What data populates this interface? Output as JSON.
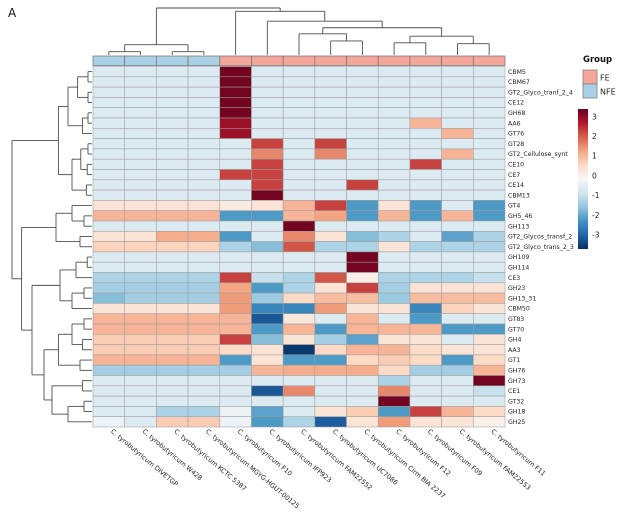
{
  "panel_label": "A",
  "legend": {
    "title": "Group",
    "items": [
      {
        "label": "FE",
        "color": "#F4A69A"
      },
      {
        "label": "NFE",
        "color": "#A9D0E4"
      }
    ]
  },
  "colorbar": {
    "ticks": [
      "3",
      "2",
      "1",
      "0",
      "-1",
      "-2",
      "-3"
    ],
    "tick_values": [
      3,
      2,
      1,
      0,
      -1,
      -2,
      -3
    ]
  },
  "chart_data": {
    "type": "heatmap",
    "title": "",
    "rows": [
      "CBM5",
      "CBM67",
      "GT2_Glyco_tranf_2_4",
      "CE12",
      "GH68",
      "AA6",
      "GT76",
      "GT28",
      "GT2_Cellulose_synt",
      "CE10",
      "CE7",
      "CE14",
      "CBM13",
      "GT4",
      "GH5_46",
      "GH113",
      "GT2_Glycos_transf_2",
      "GT2_Glyco_trans_2_3",
      "GH109",
      "GH114",
      "CE3",
      "GH23",
      "GH13_31",
      "CBM50",
      "GT83",
      "GT70",
      "GH4",
      "AA3",
      "GT1",
      "GH76",
      "GH73",
      "CE1",
      "GT32",
      "GH18",
      "GH25"
    ],
    "columns": [
      "C. tyrobutyricum DIVETGP",
      "C. tyrobutyricum W428",
      "C. tyrobutyricum KCTC 5387",
      "C. tyrobutyricum MGYG-HGUT-00125",
      "C. tyrobutyricum F10",
      "C. tyrobutyricum IFP923",
      "C. tyrobutyricum FAM22552",
      "C. tyrobutyricum UC7086",
      "C. tyrobutyricum Cirm BIA 2237",
      "C. tyrobutyricum F12",
      "C. tyrobutyricum F09",
      "C. tyrobutyricum FAM22553",
      "C. tyrobutyricum F11"
    ],
    "column_groups": [
      "NFE",
      "NFE",
      "NFE",
      "NFE",
      "FE",
      "FE",
      "FE",
      "FE",
      "FE",
      "FE",
      "FE",
      "FE",
      "FE"
    ],
    "group_colors": {
      "FE": "#F4A69A",
      "NFE": "#A9D0E4"
    },
    "grid_color": "#9E9E9E",
    "scale": {
      "min": -3.5,
      "max": 3.5,
      "colormap_anchors": [
        {
          "v": -3.5,
          "c": "#053061"
        },
        {
          "v": -2.8,
          "c": "#2166AC"
        },
        {
          "v": -2.1,
          "c": "#4393C3"
        },
        {
          "v": -1.4,
          "c": "#92C5DE"
        },
        {
          "v": -0.7,
          "c": "#D1E5F0"
        },
        {
          "v": 0.0,
          "c": "#F7F7F7"
        },
        {
          "v": 0.7,
          "c": "#FDDBC7"
        },
        {
          "v": 1.4,
          "c": "#F4A582"
        },
        {
          "v": 2.1,
          "c": "#D6604D"
        },
        {
          "v": 2.8,
          "c": "#B2182B"
        },
        {
          "v": 3.5,
          "c": "#67001F"
        }
      ]
    },
    "values": [
      [
        -0.5,
        -0.5,
        -0.5,
        -0.5,
        3.4,
        -0.5,
        -0.5,
        -0.5,
        -0.5,
        -0.5,
        -0.5,
        -0.5,
        -0.5
      ],
      [
        -0.5,
        -0.5,
        -0.5,
        -0.5,
        3.4,
        -0.5,
        -0.5,
        -0.5,
        -0.5,
        -0.5,
        -0.5,
        -0.5,
        -0.5
      ],
      [
        -0.5,
        -0.5,
        -0.5,
        -0.5,
        3.4,
        -0.5,
        -0.5,
        -0.5,
        -0.5,
        -0.5,
        -0.5,
        -0.5,
        -0.5
      ],
      [
        -0.5,
        -0.5,
        -0.5,
        -0.5,
        3.4,
        -0.5,
        -0.5,
        -0.5,
        -0.5,
        -0.5,
        -0.5,
        -0.5,
        -0.5
      ],
      [
        -0.5,
        -0.5,
        -0.5,
        -0.5,
        3.4,
        -0.5,
        -0.5,
        -0.5,
        -0.5,
        -0.5,
        -0.5,
        -0.5,
        -0.5
      ],
      [
        -0.5,
        -0.5,
        -0.5,
        -0.5,
        3.0,
        -0.5,
        -0.5,
        -0.5,
        -0.5,
        -0.5,
        1.2,
        -0.5,
        -0.5
      ],
      [
        -0.5,
        -0.5,
        -0.5,
        -0.5,
        3.0,
        -0.5,
        -0.5,
        -0.5,
        -0.5,
        -0.5,
        -0.5,
        1.2,
        -0.5
      ],
      [
        -0.5,
        -0.5,
        -0.5,
        -0.5,
        -0.5,
        2.4,
        -0.5,
        2.4,
        -0.5,
        -0.5,
        -0.5,
        -0.5,
        -0.5
      ],
      [
        -0.5,
        -0.5,
        -0.5,
        -0.5,
        -0.5,
        1.7,
        -0.5,
        1.7,
        -0.5,
        -0.5,
        -0.5,
        1.2,
        -0.5
      ],
      [
        -0.5,
        -0.5,
        -0.5,
        -0.5,
        -0.5,
        2.4,
        -0.5,
        -0.5,
        -0.5,
        -0.5,
        2.4,
        -0.5,
        -0.5
      ],
      [
        -0.5,
        -0.5,
        -0.5,
        -0.5,
        2.4,
        2.4,
        -0.5,
        -0.5,
        -0.5,
        -0.5,
        -0.5,
        -0.5,
        -0.5
      ],
      [
        -0.5,
        -0.5,
        -0.5,
        -0.5,
        -0.5,
        2.4,
        -0.5,
        -0.5,
        2.4,
        -0.5,
        -0.5,
        -0.5,
        -0.5
      ],
      [
        -0.5,
        -0.5,
        -0.5,
        -0.5,
        -0.5,
        3.4,
        -0.5,
        -0.5,
        -0.5,
        -0.5,
        -0.5,
        -0.5,
        -0.5
      ],
      [
        0.5,
        0.5,
        0.5,
        0.5,
        0.3,
        0.5,
        1.2,
        2.4,
        -2.0,
        0.5,
        -2.0,
        -0.5,
        -2.0
      ],
      [
        1.2,
        1.2,
        1.2,
        1.2,
        -2.0,
        -2.0,
        1.2,
        1.4,
        -2.0,
        1.2,
        -2.0,
        1.2,
        -2.0
      ],
      [
        -0.5,
        -0.5,
        -0.5,
        -0.5,
        -0.5,
        -0.5,
        3.4,
        -0.5,
        -0.5,
        -0.5,
        -0.5,
        -0.5,
        -0.5
      ],
      [
        0.5,
        0.5,
        1.3,
        1.3,
        -2.0,
        -0.5,
        1.7,
        0.5,
        -1.5,
        -1.1,
        -0.5,
        -1.9,
        -1.1
      ],
      [
        0.8,
        0.8,
        0.8,
        0.8,
        -1.1,
        -1.5,
        2.2,
        -1.1,
        -1.1,
        0.5,
        -1.1,
        -1.1,
        -1.1
      ],
      [
        -0.5,
        -0.5,
        -0.5,
        -0.5,
        -0.5,
        -0.5,
        -0.5,
        -0.5,
        3.4,
        -0.5,
        -0.5,
        -0.5,
        -0.5
      ],
      [
        -0.5,
        -0.5,
        -0.5,
        -0.5,
        -0.5,
        -0.5,
        -0.5,
        -0.5,
        3.4,
        -0.5,
        -0.5,
        -0.5,
        -0.5
      ],
      [
        -1.1,
        -1.1,
        -1.1,
        -1.1,
        2.4,
        -0.8,
        -1.1,
        2.2,
        0.2,
        -1.1,
        -1.1,
        -1.1,
        -0.8
      ],
      [
        -1.2,
        -1.2,
        -1.2,
        -1.2,
        1.4,
        -2.0,
        -1.1,
        0.5,
        2.4,
        -1.2,
        0.5,
        0.5,
        0.5
      ],
      [
        -1.5,
        -1.2,
        -1.2,
        -1.2,
        1.5,
        -1.3,
        0.7,
        1.1,
        1.1,
        -1.3,
        1.1,
        1.1,
        1.1
      ],
      [
        0.5,
        0.5,
        0.5,
        0.5,
        1.5,
        -2.3,
        -2.3,
        1.5,
        0.5,
        0.5,
        -2.3,
        0.8,
        0.5
      ],
      [
        1.2,
        1.2,
        1.2,
        1.2,
        1.2,
        -3.0,
        0.4,
        -0.5,
        1.2,
        -0.5,
        -2.0,
        -0.5,
        -0.5
      ],
      [
        1.2,
        1.2,
        1.2,
        1.2,
        1.2,
        -2.0,
        1.2,
        -2.0,
        1.2,
        1.2,
        1.2,
        -2.0,
        -2.0
      ],
      [
        0.9,
        0.9,
        0.9,
        0.9,
        2.4,
        -1.5,
        0.5,
        -1.2,
        -1.9,
        0.5,
        0.5,
        -0.5,
        0.5
      ],
      [
        0.9,
        0.9,
        0.9,
        0.9,
        0.7,
        0.5,
        -3.4,
        0.7,
        1.2,
        1.2,
        0.7,
        0.5,
        0.5
      ],
      [
        1.2,
        1.2,
        1.2,
        1.2,
        -2.0,
        0.5,
        -2.0,
        -2.0,
        0.7,
        0.9,
        0.7,
        -2.0,
        0.7
      ],
      [
        -1.2,
        -1.2,
        -1.2,
        -1.2,
        -1.2,
        1.2,
        1.3,
        1.3,
        1.3,
        0.7,
        -1.2,
        -1.2,
        1.2
      ],
      [
        -0.5,
        -0.5,
        -0.5,
        -0.5,
        -0.5,
        -0.5,
        -0.5,
        -0.5,
        -0.5,
        -1.1,
        -0.5,
        -0.5,
        3.4
      ],
      [
        -0.5,
        -0.5,
        -0.5,
        -0.5,
        -0.5,
        -3.0,
        1.7,
        -0.5,
        -0.5,
        1.7,
        -0.5,
        -0.5,
        -0.8
      ],
      [
        -0.5,
        -0.5,
        -0.5,
        -0.5,
        -0.5,
        -0.5,
        -0.5,
        -0.5,
        -0.5,
        3.4,
        -0.5,
        -0.5,
        -0.5
      ],
      [
        -0.5,
        -0.5,
        -1.1,
        -1.1,
        -0.2,
        -1.9,
        -0.5,
        0.5,
        0.9,
        -2.0,
        2.4,
        1.2,
        0.7
      ],
      [
        -0.2,
        -0.5,
        0.9,
        0.9,
        -0.2,
        -2.0,
        -1.1,
        -2.9,
        0.5,
        1.5,
        0.5,
        0.5,
        0.2
      ]
    ]
  },
  "dendrograms": {
    "line_color": "#4d4d4d",
    "columns": {
      "h": 1,
      "c": [
        {
          "h": 0.22,
          "c": [
            {
              "h": 0.07,
              "c": [
                1,
                2
              ]
            },
            {
              "h": 0.07,
              "c": [
                3,
                4
              ]
            }
          ]
        },
        {
          "h": 0.93,
          "c": [
            5,
            {
              "h": 0.72,
              "c": [
                6,
                {
                  "h": 0.58,
                  "c": [
                    {
                      "h": 0.45,
                      "c": [
                        7,
                        {
                          "h": 0.3,
                          "c": [
                            8,
                            9
                          ]
                        }
                      ]
                    },
                    {
                      "h": 0.4,
                      "c": [
                        {
                          "h": 0.26,
                          "c": [
                            10,
                            11
                          ]
                        },
                        {
                          "h": 0.24,
                          "c": [
                            12,
                            13
                          ]
                        }
                      ]
                    }
                  ]
                }
              ]
            }
          ]
        }
      ]
    },
    "rows": {
      "h": 1,
      "c": [
        {
          "h": 0.42,
          "c": [
            {
              "h": 0.3,
              "c": [
                {
                  "h": 0.18,
                  "c": [
                    {
                      "h": 0.05,
                      "c": [
                        1,
                        2
                      ]
                    },
                    {
                      "h": 0.05,
                      "c": [
                        3,
                        4
                      ]
                    }
                  ]
                },
                {
                  "h": 0.12,
                  "c": [
                    {
                      "h": 0.05,
                      "c": [
                        5,
                        6
                      ]
                    },
                    7
                  ]
                }
              ]
            },
            {
              "h": 0.25,
              "c": [
                {
                  "h": 0.14,
                  "c": [
                    {
                      "h": 0.05,
                      "c": [
                        8,
                        9
                      ]
                    },
                    {
                      "h": 0.06,
                      "c": [
                        10,
                        11
                      ]
                    }
                  ]
                },
                {
                  "h": 0.07,
                  "c": [
                    12,
                    13
                  ]
                }
              ]
            }
          ]
        },
        {
          "h": 0.88,
          "c": [
            {
              "h": 0.45,
              "c": [
                {
                  "h": 0.25,
                  "c": [
                    14,
                    {
                      "h": 0.1,
                      "c": [
                        15,
                        16
                      ]
                    }
                  ]
                },
                {
                  "h": 0.15,
                  "c": [
                    17,
                    18
                  ]
                }
              ]
            },
            {
              "h": 0.75,
              "c": [
                {
                  "h": 0.4,
                  "c": [
                    {
                      "h": 0.2,
                      "c": [
                        {
                          "h": 0.06,
                          "c": [
                            19,
                            20
                          ]
                        },
                        21
                      ]
                    },
                    {
                      "h": 0.25,
                      "c": [
                        {
                          "h": 0.1,
                          "c": [
                            22,
                            23
                          ]
                        },
                        24
                      ]
                    }
                  ]
                },
                {
                  "h": 0.6,
                  "c": [
                    {
                      "h": 0.42,
                      "c": [
                        {
                          "h": 0.25,
                          "c": [
                            {
                              "h": 0.1,
                              "c": [
                                25,
                                26
                              ]
                            },
                            {
                              "h": 0.12,
                              "c": [
                                27,
                                28
                              ]
                            }
                          ]
                        },
                        {
                          "h": 0.15,
                          "c": [
                            29,
                            30
                          ]
                        }
                      ]
                    },
                    {
                      "h": 0.5,
                      "c": [
                        {
                          "h": 0.12,
                          "c": [
                            31,
                            32
                          ]
                        },
                        {
                          "h": 0.3,
                          "c": [
                            {
                              "h": 0.1,
                              "c": [
                                33,
                                34
                              ]
                            },
                            35
                          ]
                        }
                      ]
                    }
                  ]
                }
              ]
            }
          ]
        }
      ]
    }
  }
}
